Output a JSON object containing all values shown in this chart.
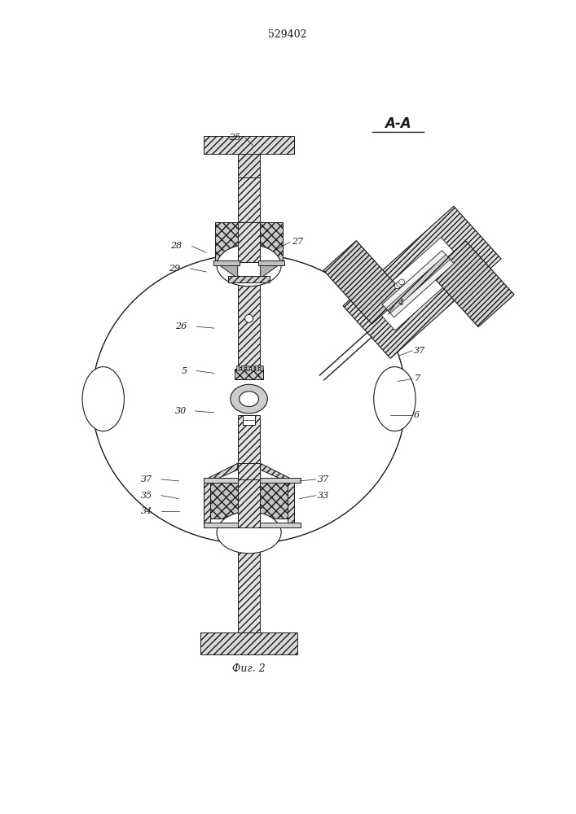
{
  "title": "529402",
  "fig_label": "Фиг. 2",
  "section_label": "A-A",
  "bg_color": "#ffffff",
  "lc": "#1a1a1a",
  "fs_label": 8,
  "fs_title": 9,
  "fs_section": 12,
  "labels": [
    [
      "25",
      295,
      165,
      "right"
    ],
    [
      "28",
      222,
      300,
      "right"
    ],
    [
      "27",
      358,
      295,
      "left"
    ],
    [
      "29",
      220,
      328,
      "right"
    ],
    [
      "26",
      228,
      400,
      "right"
    ],
    [
      "5",
      228,
      455,
      "right"
    ],
    [
      "4",
      490,
      370,
      "left"
    ],
    [
      "37",
      510,
      430,
      "left"
    ],
    [
      "7",
      510,
      465,
      "left"
    ],
    [
      "6",
      510,
      510,
      "left"
    ],
    [
      "30",
      228,
      505,
      "right"
    ],
    [
      "37",
      185,
      590,
      "right"
    ],
    [
      "35",
      185,
      610,
      "right"
    ],
    [
      "34",
      185,
      630,
      "right"
    ],
    [
      "33",
      390,
      610,
      "left"
    ],
    [
      "37",
      390,
      590,
      "left"
    ]
  ],
  "leader_lines": [
    [
      300,
      165,
      310,
      175
    ],
    [
      234,
      300,
      252,
      308
    ],
    [
      356,
      295,
      338,
      305
    ],
    [
      232,
      328,
      252,
      332
    ],
    [
      240,
      400,
      262,
      402
    ],
    [
      240,
      455,
      262,
      458
    ],
    [
      488,
      370,
      478,
      385
    ],
    [
      508,
      430,
      492,
      436
    ],
    [
      508,
      465,
      490,
      468
    ],
    [
      508,
      510,
      480,
      510
    ],
    [
      238,
      505,
      262,
      507
    ],
    [
      196,
      590,
      218,
      592
    ],
    [
      196,
      610,
      218,
      614
    ],
    [
      196,
      630,
      218,
      630
    ],
    [
      388,
      610,
      368,
      614
    ],
    [
      388,
      590,
      368,
      592
    ]
  ]
}
